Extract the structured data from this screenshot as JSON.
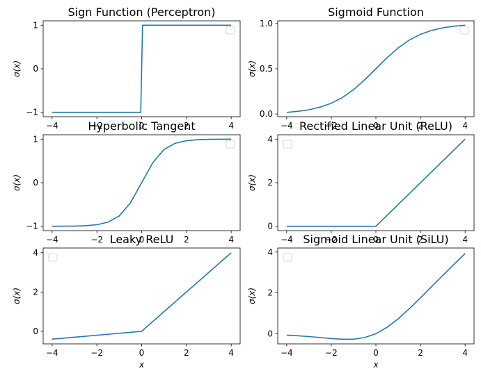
{
  "chart_data": [
    {
      "type": "line",
      "title": "Sign Function (Perceptron)",
      "xlabel": "",
      "ylabel": "σ(x)",
      "xlim": [
        -4.4,
        4.4
      ],
      "ylim": [
        -1.1,
        1.1
      ],
      "xticks": [
        -4,
        -2,
        0,
        2,
        4
      ],
      "yticks": [
        -1,
        0,
        1
      ],
      "ytick_labels": [
        "−1",
        "0",
        "1"
      ],
      "xtick_labels": [
        "−4",
        "−2",
        "0",
        "2",
        "4"
      ],
      "legend": "top-right",
      "color": "#1f77b4",
      "x": [
        -4,
        -0.04,
        0.04,
        4
      ],
      "y": [
        -1,
        -1,
        1,
        1
      ]
    },
    {
      "type": "line",
      "title": "Sigmoid Function",
      "xlabel": "",
      "ylabel": "σ(x)",
      "xlim": [
        -4.4,
        4.4
      ],
      "ylim": [
        -0.03,
        1.03
      ],
      "xticks": [
        -4,
        -2,
        0,
        2,
        4
      ],
      "yticks": [
        0,
        0.5,
        1
      ],
      "ytick_labels": [
        "0.0",
        "0.5",
        "1.0"
      ],
      "xtick_labels": [
        "−4",
        "−2",
        "0",
        "2",
        "4"
      ],
      "legend": "top-right",
      "color": "#1f77b4",
      "x": [
        -4,
        -3.5,
        -3,
        -2.5,
        -2,
        -1.5,
        -1,
        -0.5,
        0,
        0.5,
        1,
        1.5,
        2,
        2.5,
        3,
        3.5,
        4
      ],
      "y": [
        0.018,
        0.029,
        0.047,
        0.076,
        0.119,
        0.182,
        0.269,
        0.378,
        0.5,
        0.622,
        0.731,
        0.818,
        0.881,
        0.924,
        0.953,
        0.971,
        0.982
      ]
    },
    {
      "type": "line",
      "title": "Hyperbolic Tangent",
      "xlabel": "",
      "ylabel": "σ(x)",
      "xlim": [
        -4.4,
        4.4
      ],
      "ylim": [
        -1.1,
        1.1
      ],
      "xticks": [
        -4,
        -2,
        0,
        2,
        4
      ],
      "yticks": [
        -1,
        0,
        1
      ],
      "ytick_labels": [
        "−1",
        "0",
        "1"
      ],
      "xtick_labels": [
        "−4",
        "−2",
        "0",
        "2",
        "4"
      ],
      "legend": "top-right",
      "color": "#1f77b4",
      "x": [
        -4,
        -3.5,
        -3,
        -2.5,
        -2,
        -1.5,
        -1,
        -0.5,
        0,
        0.5,
        1,
        1.5,
        2,
        2.5,
        3,
        3.5,
        4
      ],
      "y": [
        -0.999,
        -0.998,
        -0.995,
        -0.987,
        -0.964,
        -0.905,
        -0.762,
        -0.462,
        0,
        0.462,
        0.762,
        0.905,
        0.964,
        0.987,
        0.995,
        0.998,
        0.999
      ]
    },
    {
      "type": "line",
      "title": "Rectified Linear Unit (ReLU)",
      "xlabel": "",
      "ylabel": "σ(x)",
      "xlim": [
        -4.4,
        4.4
      ],
      "ylim": [
        -0.2,
        4.2
      ],
      "xticks": [
        -4,
        -2,
        0,
        2,
        4
      ],
      "yticks": [
        0,
        2,
        4
      ],
      "ytick_labels": [
        "0",
        "2",
        "4"
      ],
      "xtick_labels": [
        "−4",
        "−2",
        "0",
        "2",
        "4"
      ],
      "legend": "top-left",
      "color": "#1f77b4",
      "x": [
        -4,
        0,
        4
      ],
      "y": [
        0,
        0,
        4
      ]
    },
    {
      "type": "line",
      "title": "Leaky ReLU",
      "xlabel": "x",
      "ylabel": "σ(x)",
      "xlim": [
        -4.4,
        4.4
      ],
      "ylim": [
        -0.64,
        4.24
      ],
      "xticks": [
        -4,
        -2,
        0,
        2,
        4
      ],
      "yticks": [
        0,
        2,
        4
      ],
      "ytick_labels": [
        "0",
        "2",
        "4"
      ],
      "xtick_labels": [
        "−4",
        "−2",
        "0",
        "2",
        "4"
      ],
      "legend": "top-left",
      "color": "#1f77b4",
      "x": [
        -4,
        0,
        4
      ],
      "y": [
        -0.4,
        0,
        4
      ]
    },
    {
      "type": "line",
      "title": "Sigmoid Linear Unit (SiLU)",
      "xlabel": "x",
      "ylabel": "σ(x)",
      "xlim": [
        -4.4,
        4.4
      ],
      "ylim": [
        -0.5,
        4.2
      ],
      "xticks": [
        -4,
        -2,
        0,
        2,
        4
      ],
      "yticks": [
        0,
        2,
        4
      ],
      "ytick_labels": [
        "0",
        "2",
        "4"
      ],
      "xtick_labels": [
        "−4",
        "−2",
        "0",
        "2",
        "4"
      ],
      "legend": "top-left",
      "color": "#1f77b4",
      "x": [
        -4,
        -3.5,
        -3,
        -2.5,
        -2,
        -1.5,
        -1,
        -0.5,
        0,
        0.5,
        1,
        1.5,
        2,
        2.5,
        3,
        3.5,
        4
      ],
      "y": [
        -0.072,
        -0.102,
        -0.142,
        -0.189,
        -0.238,
        -0.273,
        -0.269,
        -0.189,
        0,
        0.311,
        0.731,
        1.227,
        1.762,
        2.311,
        2.858,
        3.398,
        3.928
      ]
    }
  ]
}
